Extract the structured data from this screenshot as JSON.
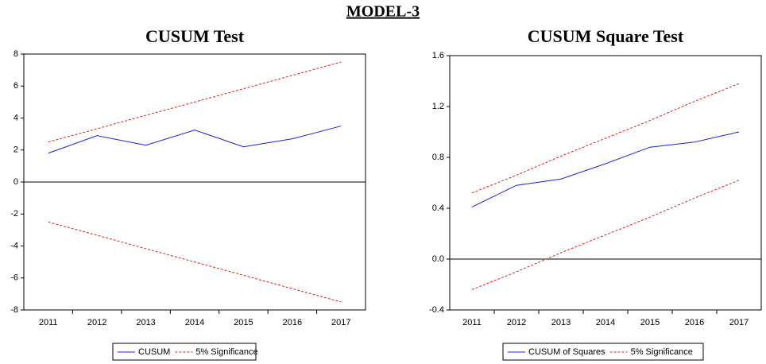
{
  "title": "MODEL-3",
  "chart_data": [
    {
      "type": "line",
      "title": "CUSUM Test",
      "categories": [
        "2011",
        "2012",
        "2013",
        "2014",
        "2015",
        "2016",
        "2017"
      ],
      "ylim": [
        -8,
        8
      ],
      "yticks": [
        -8,
        -6,
        -4,
        -2,
        0,
        2,
        4,
        6,
        8
      ],
      "series": [
        {
          "name": "CUSUM",
          "color": "#2020e0",
          "style": "solid",
          "values": [
            1.8,
            2.9,
            2.3,
            3.25,
            2.2,
            2.7,
            3.5
          ]
        },
        {
          "name": "5% Significance",
          "color": "#e02020",
          "style": "dashed",
          "values": [
            2.5,
            3.33,
            4.17,
            5.0,
            5.83,
            6.67,
            7.5
          ]
        },
        {
          "color": "#e02020",
          "style": "dashed",
          "values": [
            -2.5,
            -3.33,
            -4.17,
            -5.0,
            -5.83,
            -6.67,
            -7.5
          ]
        }
      ]
    },
    {
      "type": "line",
      "title": "CUSUM Square Test",
      "categories": [
        "2011",
        "2012",
        "2013",
        "2014",
        "2015",
        "2016",
        "2017"
      ],
      "ylim": [
        -0.4,
        1.6
      ],
      "yticks": [
        -0.4,
        {
          "value": 0,
          "label": "0.0"
        },
        0.4,
        0.8,
        1.2,
        1.6
      ],
      "series": [
        {
          "name": "CUSUM of Squares",
          "color": "#2020e0",
          "style": "solid",
          "values": [
            0.41,
            0.58,
            0.63,
            0.75,
            0.88,
            0.92,
            1.0
          ]
        },
        {
          "name": "5% Significance",
          "color": "#e02020",
          "style": "dashed",
          "values": [
            0.52,
            0.66,
            0.81,
            0.95,
            1.09,
            1.24,
            1.38
          ]
        },
        {
          "color": "#e02020",
          "style": "dashed",
          "values": [
            -0.24,
            -0.1,
            0.05,
            0.19,
            0.33,
            0.48,
            0.62
          ]
        }
      ]
    }
  ]
}
